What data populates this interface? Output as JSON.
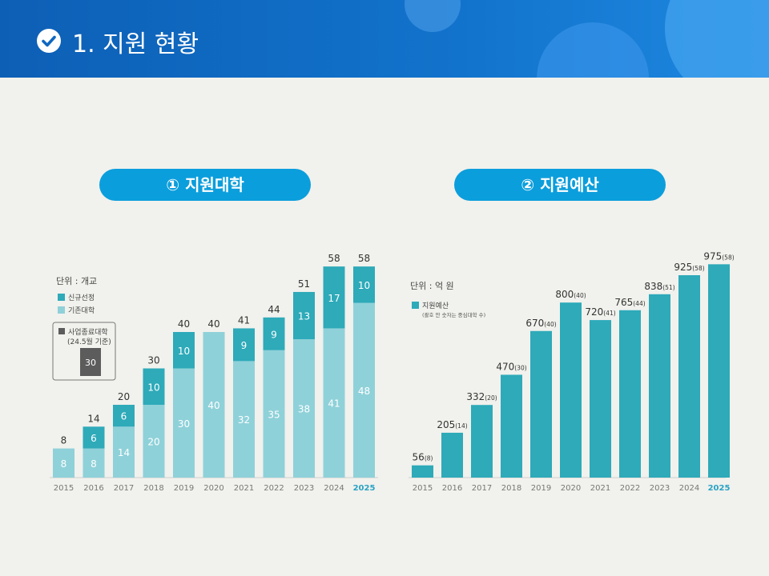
{
  "header": {
    "title": "1. 지원 현황"
  },
  "sections": {
    "left_title": "① 지원대학",
    "right_title": "② 지원예산"
  },
  "colors": {
    "new": "#2eaab9",
    "existing": "#8fd1d9",
    "ended": "#5c5c5c",
    "budget": "#2eaab9",
    "highlight_year": "#2aa3c4"
  },
  "chart_data": [
    {
      "type": "bar",
      "stacked": true,
      "unit_label": "단위 : 개교",
      "categories": [
        "2015",
        "2016",
        "2017",
        "2018",
        "2019",
        "2020",
        "2021",
        "2022",
        "2023",
        "2024",
        "2025"
      ],
      "series": [
        {
          "name": "기존대학",
          "values": [
            8,
            8,
            14,
            20,
            30,
            40,
            32,
            35,
            38,
            41,
            48
          ]
        },
        {
          "name": "신규선정",
          "values": [
            null,
            6,
            6,
            10,
            10,
            null,
            9,
            9,
            13,
            17,
            10
          ]
        }
      ],
      "totals": [
        8,
        14,
        20,
        30,
        40,
        40,
        41,
        44,
        51,
        58,
        58
      ],
      "inset": {
        "label_line1": "사업종료대학",
        "label_line2": "(24.5월 기준)",
        "value": 30
      },
      "ylim": [
        0,
        60
      ]
    },
    {
      "type": "bar",
      "unit_label": "단위 : 억 원",
      "legend_label": "지원예산",
      "legend_note": "(괄호 안 숫자는 중심대학 수)",
      "categories": [
        "2015",
        "2016",
        "2017",
        "2018",
        "2019",
        "2020",
        "2021",
        "2022",
        "2023",
        "2024",
        "2025"
      ],
      "values": [
        56,
        205,
        332,
        470,
        670,
        800,
        720,
        765,
        838,
        925,
        975
      ],
      "counts": [
        "(8)",
        "(14)",
        "(20)",
        "(30)",
        "(40)",
        "(40)",
        "(41)",
        "(44)",
        "(51)",
        "(58)",
        "(58)"
      ],
      "ylim": [
        0,
        1000
      ]
    }
  ]
}
